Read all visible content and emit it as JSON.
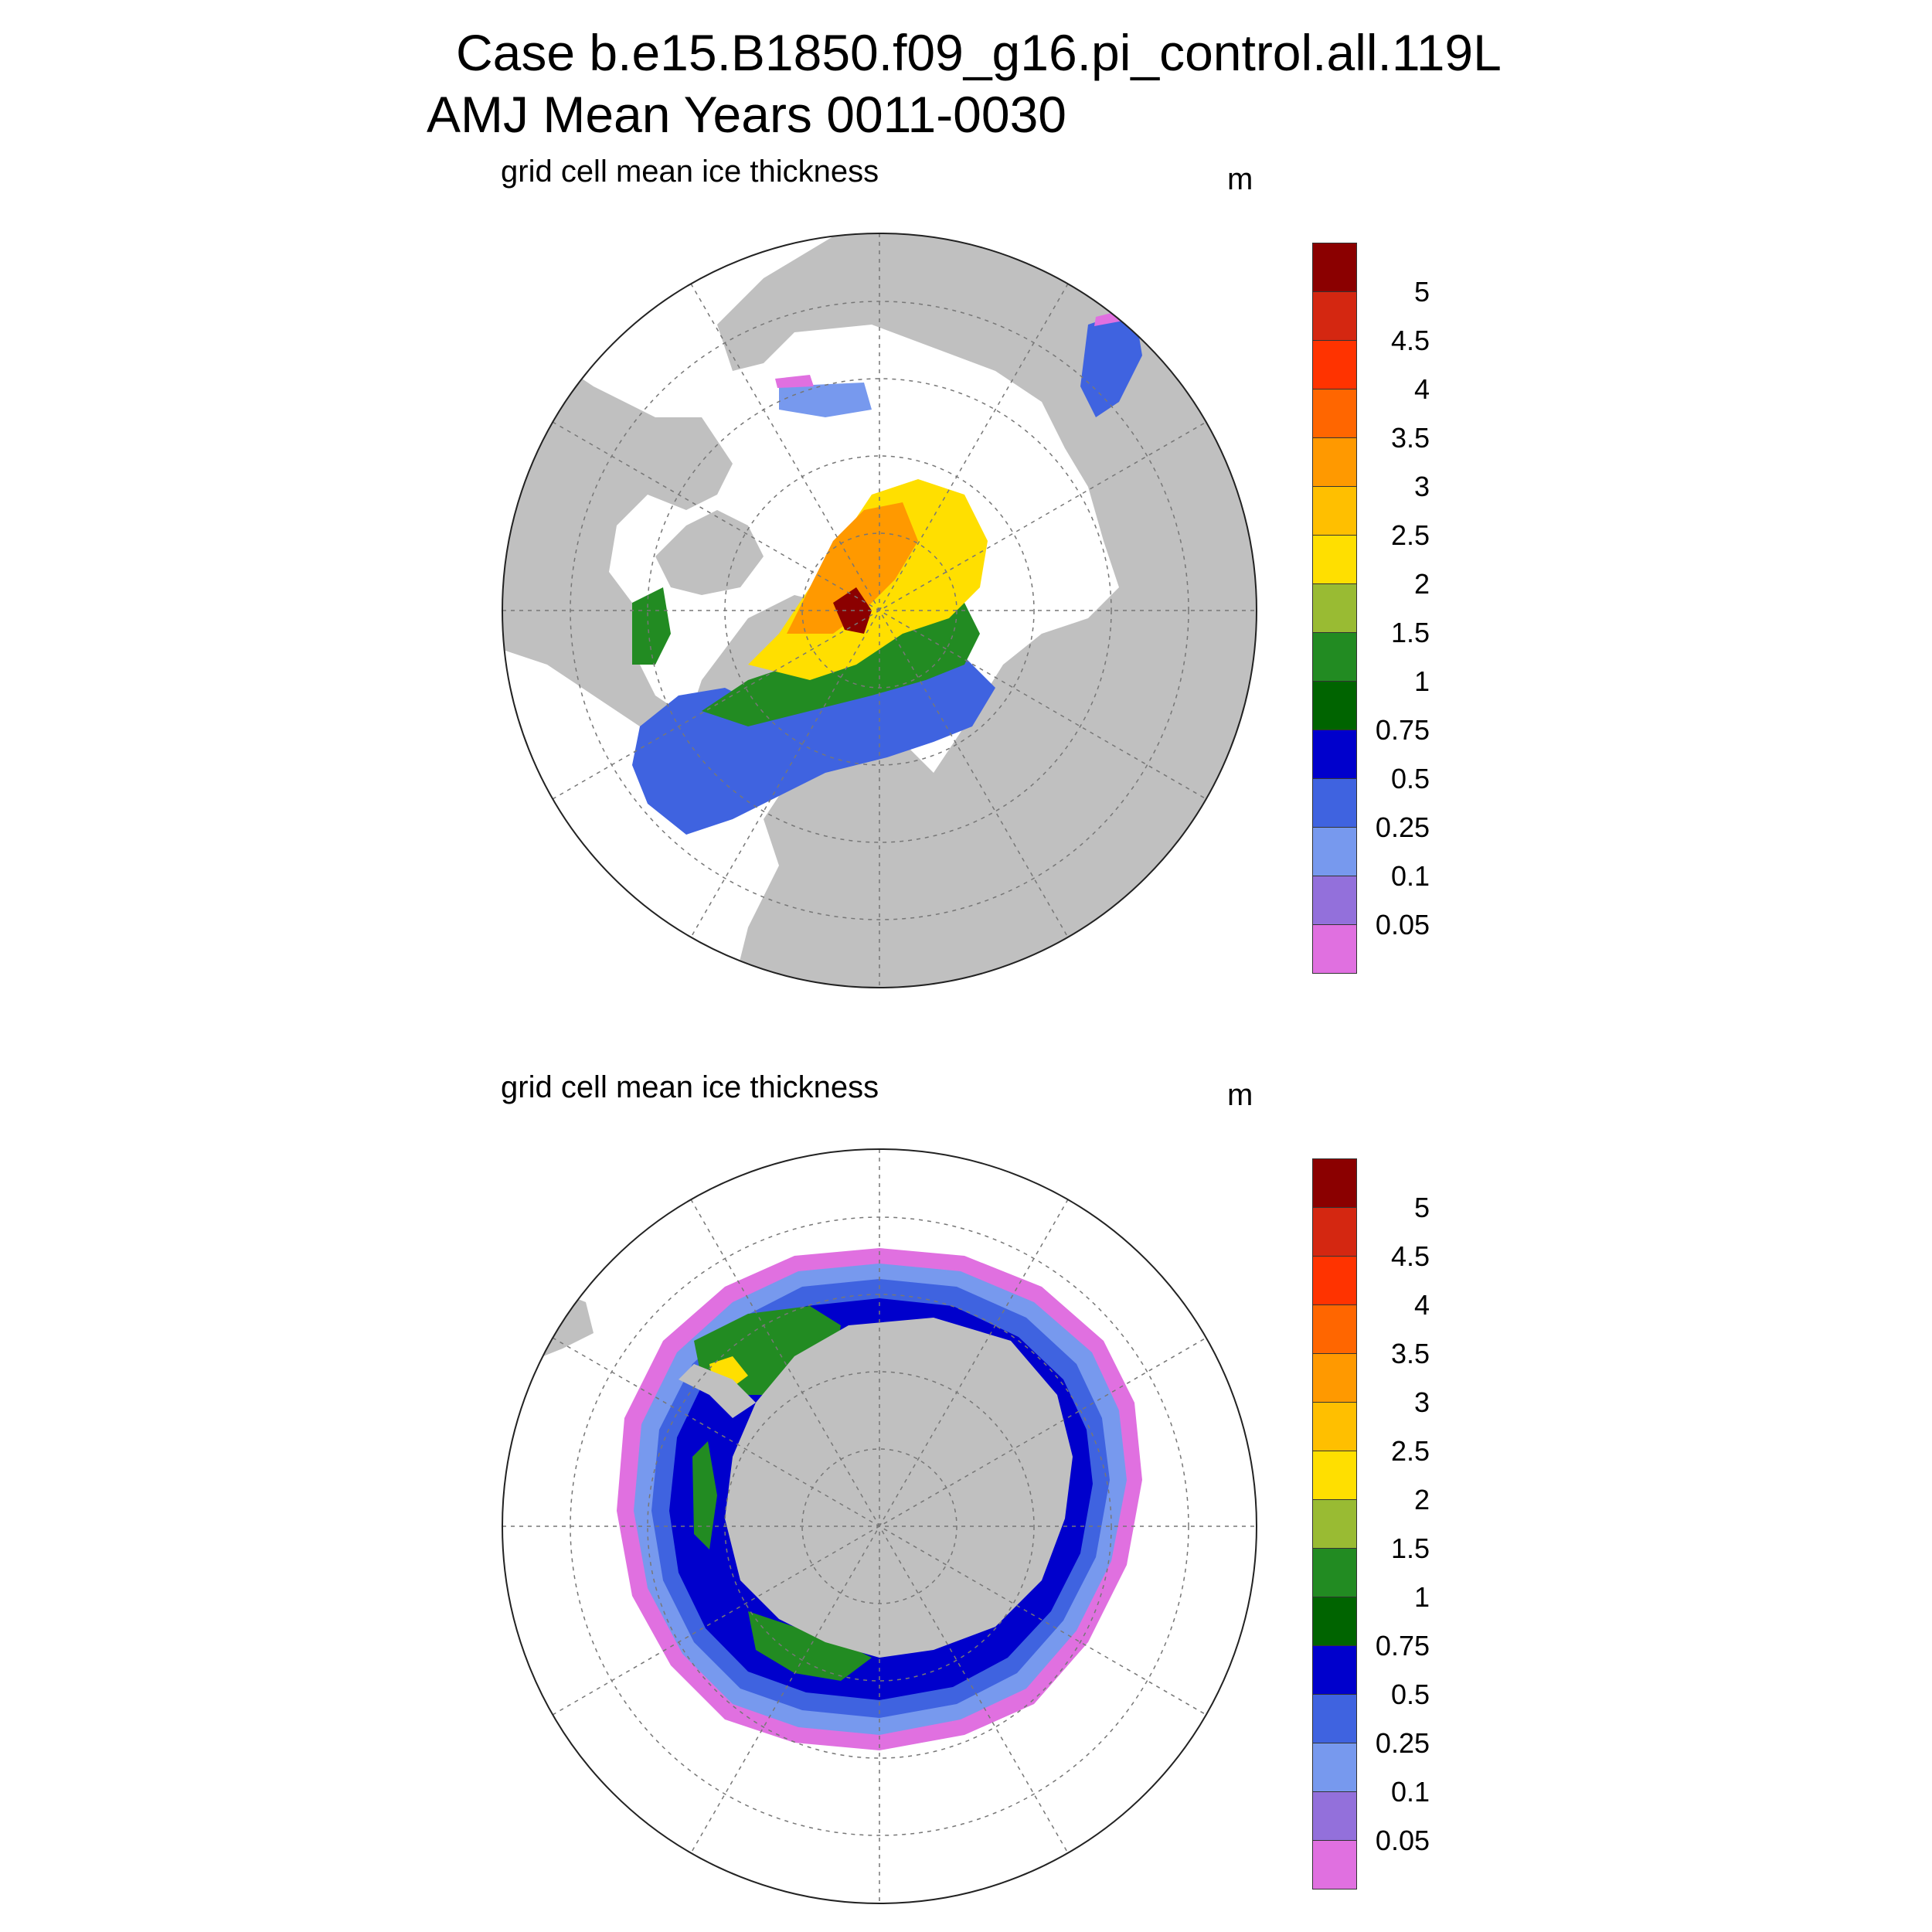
{
  "title": {
    "line1": "Case b.e15.B1850.f09_g16.pi_control.all.119L",
    "line2": "AMJ Mean   Years 0011-0030"
  },
  "panels": [
    {
      "id": "north",
      "variable": "grid cell mean ice thickness",
      "units": "m",
      "hemisphere": "north"
    },
    {
      "id": "south",
      "variable": "grid cell mean ice thickness",
      "units": "m",
      "hemisphere": "south"
    }
  ],
  "colorbar": {
    "colors": [
      "#8b0000",
      "#d42711",
      "#ff3300",
      "#ff6600",
      "#ff9900",
      "#ffbf00",
      "#ffdf00",
      "#99bb33",
      "#228b22",
      "#006400",
      "#0000cc",
      "#3f63e0",
      "#7799ee",
      "#9370db",
      "#e070e0"
    ],
    "levels": [
      "5",
      "4.5",
      "4",
      "3.5",
      "3",
      "2.5",
      "2",
      "1.5",
      "1",
      "0.75",
      "0.5",
      "0.25",
      "0.1",
      "0.05"
    ]
  },
  "colors": {
    "land": "#c0c0c0",
    "ocean": "#ffffff",
    "grid": "#777777"
  }
}
